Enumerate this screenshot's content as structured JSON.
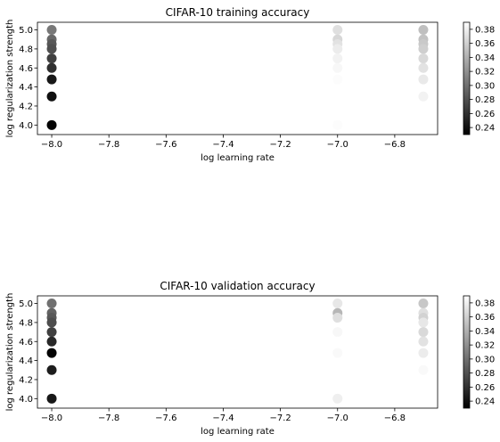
{
  "chart_data": [
    {
      "type": "scatter",
      "title": "CIFAR-10 training accuracy",
      "xlabel": "log learning rate",
      "ylabel": "log regularization strength",
      "xlim": [
        -8.05,
        -6.65
      ],
      "ylim": [
        3.9,
        5.08
      ],
      "xticks": [
        "−8.0",
        "−7.8",
        "−7.6",
        "−7.4",
        "−7.2",
        "−7.0",
        "−6.8"
      ],
      "yticks": [
        "4.0",
        "4.2",
        "4.4",
        "4.6",
        "4.8",
        "5.0"
      ],
      "colorbar": {
        "cmap": "gray",
        "range": [
          0.23,
          0.39
        ],
        "ticks": [
          "0.24",
          "0.26",
          "0.28",
          "0.30",
          "0.32",
          "0.34",
          "0.36",
          "0.38"
        ]
      },
      "points": [
        {
          "x": -8.0,
          "y": 5.0,
          "value": 0.305
        },
        {
          "x": -8.0,
          "y": 4.9,
          "value": 0.295
        },
        {
          "x": -8.0,
          "y": 4.85,
          "value": 0.285
        },
        {
          "x": -8.0,
          "y": 4.8,
          "value": 0.28
        },
        {
          "x": -8.0,
          "y": 4.7,
          "value": 0.27
        },
        {
          "x": -8.0,
          "y": 4.6,
          "value": 0.26
        },
        {
          "x": -8.0,
          "y": 4.48,
          "value": 0.245
        },
        {
          "x": -8.0,
          "y": 4.3,
          "value": 0.24
        },
        {
          "x": -8.0,
          "y": 4.0,
          "value": 0.232
        },
        {
          "x": -7.0,
          "y": 5.0,
          "value": 0.37
        },
        {
          "x": -7.0,
          "y": 4.9,
          "value": 0.365
        },
        {
          "x": -7.0,
          "y": 4.85,
          "value": 0.372
        },
        {
          "x": -7.0,
          "y": 4.8,
          "value": 0.378
        },
        {
          "x": -7.0,
          "y": 4.7,
          "value": 0.382
        },
        {
          "x": -7.0,
          "y": 4.6,
          "value": 0.385
        },
        {
          "x": -7.0,
          "y": 4.48,
          "value": 0.388
        },
        {
          "x": -7.0,
          "y": 4.3,
          "value": 0.39
        },
        {
          "x": -7.0,
          "y": 4.0,
          "value": 0.388
        },
        {
          "x": -6.7,
          "y": 5.0,
          "value": 0.35
        },
        {
          "x": -6.7,
          "y": 4.9,
          "value": 0.352
        },
        {
          "x": -6.7,
          "y": 4.85,
          "value": 0.356
        },
        {
          "x": -6.7,
          "y": 4.8,
          "value": 0.36
        },
        {
          "x": -6.7,
          "y": 4.7,
          "value": 0.366
        },
        {
          "x": -6.7,
          "y": 4.6,
          "value": 0.372
        },
        {
          "x": -6.7,
          "y": 4.48,
          "value": 0.376
        },
        {
          "x": -6.7,
          "y": 4.3,
          "value": 0.382
        }
      ]
    },
    {
      "type": "scatter",
      "title": "CIFAR-10 validation accuracy",
      "xlabel": "log learning rate",
      "ylabel": "log regularization strength",
      "xlim": [
        -8.05,
        -6.65
      ],
      "ylim": [
        3.9,
        5.08
      ],
      "xticks": [
        "−8.0",
        "−7.8",
        "−7.6",
        "−7.4",
        "−7.2",
        "−7.0",
        "−6.8"
      ],
      "yticks": [
        "4.0",
        "4.2",
        "4.4",
        "4.6",
        "4.8",
        "5.0"
      ],
      "colorbar": {
        "cmap": "gray",
        "range": [
          0.23,
          0.39
        ],
        "ticks": [
          "0.24",
          "0.26",
          "0.28",
          "0.30",
          "0.32",
          "0.34",
          "0.36",
          "0.38"
        ]
      },
      "points": [
        {
          "x": -8.0,
          "y": 5.0,
          "value": 0.3
        },
        {
          "x": -8.0,
          "y": 4.9,
          "value": 0.292
        },
        {
          "x": -8.0,
          "y": 4.85,
          "value": 0.285
        },
        {
          "x": -8.0,
          "y": 4.8,
          "value": 0.278
        },
        {
          "x": -8.0,
          "y": 4.7,
          "value": 0.27
        },
        {
          "x": -8.0,
          "y": 4.6,
          "value": 0.255
        },
        {
          "x": -8.0,
          "y": 4.48,
          "value": 0.232
        },
        {
          "x": -8.0,
          "y": 4.3,
          "value": 0.248
        },
        {
          "x": -8.0,
          "y": 4.0,
          "value": 0.245
        },
        {
          "x": -7.0,
          "y": 5.0,
          "value": 0.375
        },
        {
          "x": -7.0,
          "y": 4.9,
          "value": 0.345
        },
        {
          "x": -7.0,
          "y": 4.85,
          "value": 0.37
        },
        {
          "x": -7.0,
          "y": 4.7,
          "value": 0.385
        },
        {
          "x": -7.0,
          "y": 4.6,
          "value": 0.39
        },
        {
          "x": -7.0,
          "y": 4.48,
          "value": 0.386
        },
        {
          "x": -7.0,
          "y": 4.3,
          "value": 0.395
        },
        {
          "x": -7.0,
          "y": 4.0,
          "value": 0.38
        },
        {
          "x": -6.7,
          "y": 5.0,
          "value": 0.355
        },
        {
          "x": -6.7,
          "y": 4.9,
          "value": 0.37
        },
        {
          "x": -6.7,
          "y": 4.85,
          "value": 0.362
        },
        {
          "x": -6.7,
          "y": 4.8,
          "value": 0.375
        },
        {
          "x": -6.7,
          "y": 4.7,
          "value": 0.366
        },
        {
          "x": -6.7,
          "y": 4.6,
          "value": 0.372
        },
        {
          "x": -6.7,
          "y": 4.48,
          "value": 0.378
        },
        {
          "x": -6.7,
          "y": 4.3,
          "value": 0.386
        }
      ]
    }
  ]
}
